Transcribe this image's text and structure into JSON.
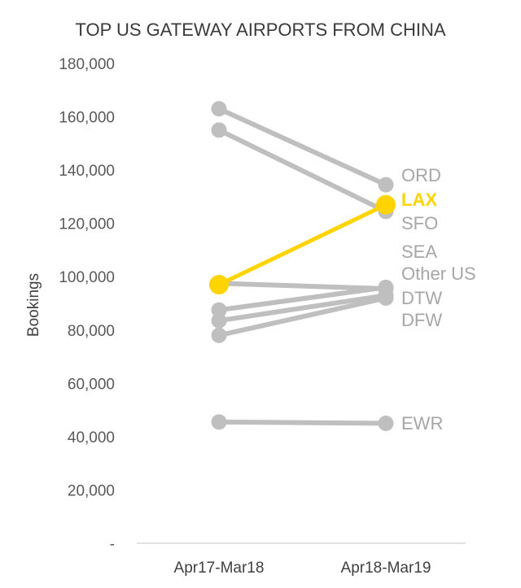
{
  "chart_data": {
    "type": "line",
    "title": "TOP US GATEWAY AIRPORTS FROM CHINA",
    "xlabel": "",
    "ylabel": "Bookings",
    "categories": [
      "Apr17-Mar18",
      "Apr18-Mar19"
    ],
    "ylim": [
      0,
      180000
    ],
    "yticks": [
      0,
      20000,
      40000,
      60000,
      80000,
      100000,
      120000,
      140000,
      160000,
      180000
    ],
    "ytick_labels": [
      "-",
      "20,000",
      "40,000",
      "60,000",
      "80,000",
      "100,000",
      "120,000",
      "140,000",
      "160,000",
      "180,000"
    ],
    "grid": false,
    "highlight_color": "#FFD400",
    "base_color": "#BFBFBF",
    "label_color": "#A6A6A6",
    "series": [
      {
        "name": "ORD",
        "values": [
          163000,
          134500
        ],
        "highlight": false
      },
      {
        "name": "LAX",
        "values": [
          97000,
          127000
        ],
        "highlight": true
      },
      {
        "name": "SFO",
        "values": [
          155000,
          124500
        ],
        "highlight": false
      },
      {
        "name": "SEA",
        "values": [
          87500,
          96000
        ],
        "highlight": false
      },
      {
        "name": "Other US",
        "values": [
          97500,
          95500
        ],
        "highlight": false
      },
      {
        "name": "DTW",
        "values": [
          83500,
          93000
        ],
        "highlight": false
      },
      {
        "name": "DFW",
        "values": [
          78000,
          92000
        ],
        "highlight": false
      },
      {
        "name": "EWR",
        "values": [
          45500,
          45000
        ],
        "highlight": false
      }
    ]
  }
}
